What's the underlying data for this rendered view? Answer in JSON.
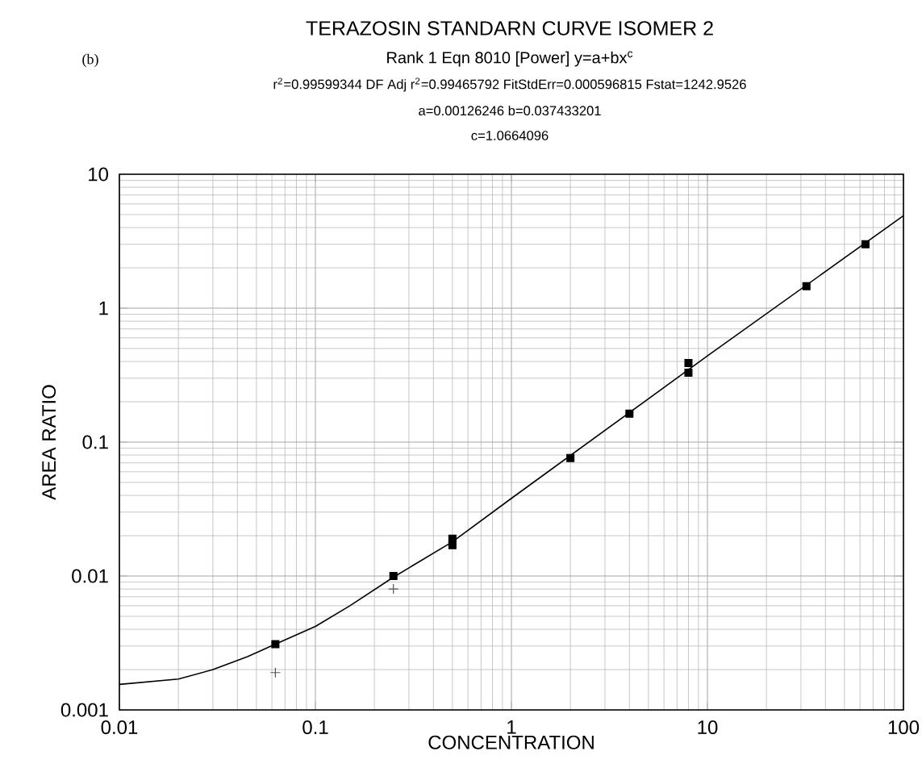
{
  "chart_data": {
    "type": "scatter",
    "title": "TERAZOSIN STANDARN CURVE ISOMER 2",
    "subtitle": "Rank 1  Eqn 8010  [Power] y=a+bx$^{c}$",
    "annotations": [
      "(b)",
      "r$^{2}$=0.99599344  DF Adj r$^{2}$=0.99465792  FitStdErr=0.000596815  Fstat=1242.9526",
      "a=0.00126246 b=0.037433201",
      "c=1.0664096"
    ],
    "xlabel": "CONCENTRATION",
    "ylabel": "AREA RATIO",
    "log": "xy",
    "grid": true,
    "xlim": [
      0.01,
      100
    ],
    "ylim": [
      0.001,
      10
    ],
    "xticks": [
      0.01,
      0.1,
      1,
      10,
      100
    ],
    "yticks": [
      0.001,
      0.01,
      0.1,
      1,
      10
    ],
    "series": [
      {
        "type": "line",
        "color": "#000000",
        "marker": "none",
        "line_style": "solid",
        "x": [
          0.01,
          0.02,
          0.03,
          0.045,
          0.0625,
          0.1,
          0.15,
          0.25,
          0.5,
          1,
          10,
          100
        ],
        "values": [
          0.00155,
          0.0017,
          0.002,
          0.0025,
          0.0031,
          0.0042,
          0.006,
          0.0098,
          0.018,
          0.038,
          0.44,
          4.9
        ]
      },
      {
        "color": "#000000",
        "marker": "square",
        "x": [
          0.0625,
          0.25,
          0.5,
          0.5,
          2,
          4,
          8,
          8,
          32,
          64
        ],
        "values": [
          0.0031,
          0.01,
          0.019,
          0.017,
          0.076,
          0.163,
          0.39,
          0.33,
          1.46,
          3.0
        ]
      },
      {
        "color": "#555555",
        "marker": "cross",
        "x": [
          0.0625,
          0.25
        ],
        "values": [
          0.0019,
          0.008
        ]
      }
    ]
  }
}
